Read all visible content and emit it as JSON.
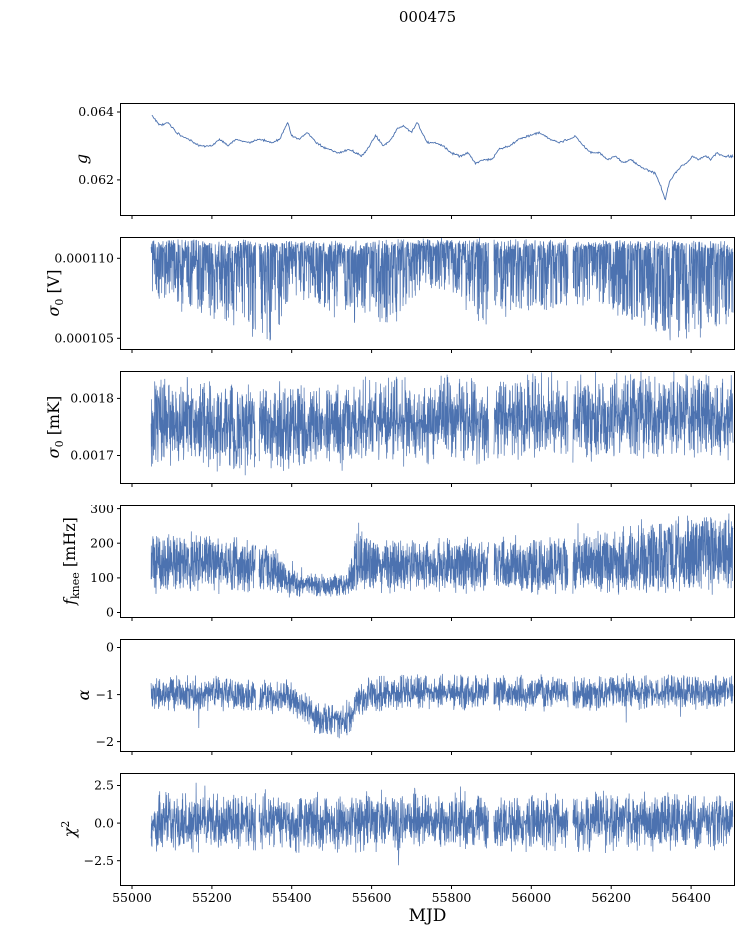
{
  "title": "000475",
  "xlabel": "MJD",
  "line_color": "#4c72b0",
  "axis": {
    "xlim": [
      54970,
      56510
    ],
    "xticks": [
      {
        "v": 55000,
        "t": "55000"
      },
      {
        "v": 55200,
        "t": "55200"
      },
      {
        "v": 55400,
        "t": "55400"
      },
      {
        "v": 55600,
        "t": "55600"
      },
      {
        "v": 55800,
        "t": "55800"
      },
      {
        "v": 56000,
        "t": "56000"
      },
      {
        "v": 56200,
        "t": "56200"
      },
      {
        "v": 56400,
        "t": "56400"
      }
    ],
    "gaps": [
      [
        55310,
        55318
      ],
      [
        55893,
        55906
      ],
      [
        56092,
        56104
      ]
    ]
  },
  "chart_data": [
    {
      "id": "g",
      "type": "line",
      "ylabel": {
        "main": "g",
        "sub": "",
        "sup": "",
        "unit": ""
      },
      "ylim": [
        0.06095,
        0.06425
      ],
      "yticks": [
        {
          "v": 0.062,
          "t": "0.062"
        },
        {
          "v": 0.064,
          "t": "0.064"
        }
      ],
      "mode": "trend",
      "seed": 42,
      "n": 750,
      "sw": 0.9,
      "xdata": [
        55050,
        56505
      ],
      "amp": 4e-05,
      "trend": [
        [
          55050,
          0.0639
        ],
        [
          55070,
          0.0636
        ],
        [
          55090,
          0.0637
        ],
        [
          55110,
          0.0634
        ],
        [
          55140,
          0.0632
        ],
        [
          55170,
          0.063
        ],
        [
          55200,
          0.063
        ],
        [
          55220,
          0.0632
        ],
        [
          55240,
          0.063
        ],
        [
          55260,
          0.0632
        ],
        [
          55290,
          0.0631
        ],
        [
          55320,
          0.0632
        ],
        [
          55350,
          0.0631
        ],
        [
          55370,
          0.0632
        ],
        [
          55390,
          0.0637
        ],
        [
          55400,
          0.0633
        ],
        [
          55420,
          0.0632
        ],
        [
          55440,
          0.0634
        ],
        [
          55460,
          0.0631
        ],
        [
          55490,
          0.0629
        ],
        [
          55520,
          0.0628
        ],
        [
          55540,
          0.0629
        ],
        [
          55560,
          0.0628
        ],
        [
          55575,
          0.0627
        ],
        [
          55590,
          0.0629
        ],
        [
          55610,
          0.0633
        ],
        [
          55630,
          0.063
        ],
        [
          55650,
          0.0632
        ],
        [
          55665,
          0.0635
        ],
        [
          55680,
          0.0636
        ],
        [
          55700,
          0.0634
        ],
        [
          55715,
          0.0637
        ],
        [
          55725,
          0.0634
        ],
        [
          55740,
          0.0631
        ],
        [
          55760,
          0.0631
        ],
        [
          55780,
          0.063
        ],
        [
          55800,
          0.0628
        ],
        [
          55820,
          0.0627
        ],
        [
          55840,
          0.0628
        ],
        [
          55860,
          0.0625
        ],
        [
          55880,
          0.0626
        ],
        [
          55900,
          0.0626
        ],
        [
          55920,
          0.0629
        ],
        [
          55945,
          0.063
        ],
        [
          55970,
          0.0632
        ],
        [
          55995,
          0.0633
        ],
        [
          56020,
          0.0634
        ],
        [
          56045,
          0.0632
        ],
        [
          56070,
          0.0631
        ],
        [
          56095,
          0.0632
        ],
        [
          56110,
          0.0633
        ],
        [
          56130,
          0.063
        ],
        [
          56150,
          0.0628
        ],
        [
          56170,
          0.0628
        ],
        [
          56190,
          0.0626
        ],
        [
          56210,
          0.0627
        ],
        [
          56230,
          0.0625
        ],
        [
          56250,
          0.0626
        ],
        [
          56270,
          0.0624
        ],
        [
          56290,
          0.0623
        ],
        [
          56310,
          0.0622
        ],
        [
          56325,
          0.0618
        ],
        [
          56335,
          0.0614
        ],
        [
          56345,
          0.0619
        ],
        [
          56360,
          0.0622
        ],
        [
          56375,
          0.0624
        ],
        [
          56390,
          0.0625
        ],
        [
          56405,
          0.0627
        ],
        [
          56420,
          0.0626
        ],
        [
          56435,
          0.0627
        ],
        [
          56450,
          0.0626
        ],
        [
          56465,
          0.0628
        ],
        [
          56480,
          0.0627
        ],
        [
          56505,
          0.0627
        ]
      ]
    },
    {
      "id": "sigma0-v",
      "type": "line",
      "ylabel": {
        "main": "σ",
        "sub": "0",
        "sup": "",
        "unit": " [V]"
      },
      "ylim": [
        0.0001043,
        0.0001113
      ],
      "yticks": [
        {
          "v": 0.000105,
          "t": "0.000105"
        },
        {
          "v": 0.00011,
          "t": "0.000110"
        }
      ],
      "mode": "updown",
      "seed": 7,
      "n": 2600,
      "sw": 0.7,
      "xdata": [
        55048,
        56505
      ],
      "center": [
        [
          55048,
          0.0001107
        ],
        [
          55300,
          0.0001107
        ],
        [
          55500,
          0.0001106
        ],
        [
          55800,
          0.0001108
        ],
        [
          56100,
          0.0001107
        ],
        [
          56505,
          0.0001106
        ]
      ],
      "up": 5e-07,
      "pu": 1,
      "down": [
        [
          55048,
          3e-06
        ],
        [
          55120,
          4.2e-06
        ],
        [
          55200,
          4.6e-06
        ],
        [
          55290,
          5.5e-06
        ],
        [
          55340,
          6.3e-06
        ],
        [
          55400,
          3.6e-06
        ],
        [
          55480,
          4.2e-06
        ],
        [
          55560,
          5e-06
        ],
        [
          55650,
          5e-06
        ],
        [
          55720,
          3.2e-06
        ],
        [
          55800,
          3e-06
        ],
        [
          55880,
          5.5e-06
        ],
        [
          55950,
          4.2e-06
        ],
        [
          56050,
          4.2e-06
        ],
        [
          56150,
          3.8e-06
        ],
        [
          56250,
          5e-06
        ],
        [
          56350,
          6e-06
        ],
        [
          56450,
          5.5e-06
        ],
        [
          56505,
          4.5e-06
        ]
      ],
      "pd": 2.2,
      "rare_down": {
        "p": 0.0025,
        "a": 1.8e-06
      }
    },
    {
      "id": "sigma0-mk",
      "type": "line",
      "ylabel": {
        "main": "σ",
        "sub": "0",
        "sup": "",
        "unit": " [mK]"
      },
      "ylim": [
        0.001651,
        0.001847
      ],
      "yticks": [
        {
          "v": 0.0017,
          "t": "0.0017"
        },
        {
          "v": 0.0018,
          "t": "0.0018"
        }
      ],
      "mode": "sym",
      "seed": 13,
      "n": 2600,
      "sw": 0.7,
      "xdata": [
        55048,
        56505
      ],
      "center": [
        [
          55048,
          0.001762
        ],
        [
          55150,
          0.001758
        ],
        [
          55250,
          0.00175
        ],
        [
          55330,
          0.001748
        ],
        [
          55420,
          0.001756
        ],
        [
          55500,
          0.001752
        ],
        [
          55600,
          0.001762
        ],
        [
          55700,
          0.001758
        ],
        [
          55800,
          0.001762
        ],
        [
          55900,
          0.001756
        ],
        [
          56000,
          0.001764
        ],
        [
          56100,
          0.001768
        ],
        [
          56200,
          0.001764
        ],
        [
          56300,
          0.001768
        ],
        [
          56400,
          0.001766
        ],
        [
          56505,
          0.001765
        ]
      ],
      "amp": 8.5e-05,
      "rare_down": {
        "p": 0.004,
        "a": 6e-05
      },
      "rare_up": {
        "p": 0.003,
        "a": 3e-05
      }
    },
    {
      "id": "f-knee",
      "type": "line",
      "ylabel": {
        "main": "f",
        "sub": "knee",
        "sup": "",
        "unit": " [mHz]"
      },
      "ylim": [
        -14.5,
        309
      ],
      "yticks": [
        {
          "v": 0,
          "t": "0"
        },
        {
          "v": 100,
          "t": "100"
        },
        {
          "v": 200,
          "t": "200"
        },
        {
          "v": 300,
          "t": "300"
        }
      ],
      "mode": "updown",
      "seed": 99,
      "n": 3000,
      "sw": 0.7,
      "xdata": [
        55048,
        56505
      ],
      "center": [
        [
          55048,
          100
        ],
        [
          55300,
          95
        ],
        [
          55360,
          90
        ],
        [
          55395,
          80
        ],
        [
          55420,
          72
        ],
        [
          55540,
          72
        ],
        [
          55560,
          95
        ],
        [
          55650,
          95
        ],
        [
          56505,
          95
        ]
      ],
      "up": [
        [
          55048,
          135
        ],
        [
          55150,
          140
        ],
        [
          55300,
          120
        ],
        [
          55360,
          110
        ],
        [
          55395,
          60
        ],
        [
          55420,
          45
        ],
        [
          55540,
          45
        ],
        [
          55565,
          170
        ],
        [
          55600,
          130
        ],
        [
          55700,
          120
        ],
        [
          55800,
          125
        ],
        [
          55900,
          135
        ],
        [
          56000,
          125
        ],
        [
          56100,
          135
        ],
        [
          56200,
          150
        ],
        [
          56300,
          175
        ],
        [
          56400,
          195
        ],
        [
          56505,
          200
        ]
      ],
      "pu": 1,
      "down": [
        [
          55048,
          48
        ],
        [
          55395,
          40
        ],
        [
          55420,
          32
        ],
        [
          55540,
          32
        ],
        [
          55560,
          45
        ],
        [
          56505,
          45
        ]
      ],
      "pd": 1,
      "rare_up": {
        "p": 0.01,
        "a": 70
      }
    },
    {
      "id": "alpha",
      "type": "line",
      "ylabel": {
        "main": "α",
        "sub": "",
        "sup": "",
        "unit": ""
      },
      "ylim": [
        -2.21,
        0.17
      ],
      "yticks": [
        {
          "v": -2,
          "t": "−2"
        },
        {
          "v": -1,
          "t": "−1"
        },
        {
          "v": 0,
          "t": "0"
        }
      ],
      "mode": "sym",
      "seed": 5,
      "n": 2600,
      "sw": 0.7,
      "xdata": [
        55048,
        56505
      ],
      "center": [
        [
          55048,
          -0.95
        ],
        [
          55250,
          -0.98
        ],
        [
          55320,
          -1.05
        ],
        [
          55390,
          -1.05
        ],
        [
          55430,
          -1.25
        ],
        [
          55460,
          -1.5
        ],
        [
          55480,
          -1.55
        ],
        [
          55545,
          -1.5
        ],
        [
          55570,
          -1.1
        ],
        [
          55600,
          -0.97
        ],
        [
          55800,
          -0.95
        ],
        [
          56000,
          -0.97
        ],
        [
          56200,
          -0.95
        ],
        [
          56505,
          -0.92
        ]
      ],
      "amp": 0.42,
      "rare_down": {
        "p": 0.012,
        "a": 0.5
      },
      "rare_up": {
        "p": 0.004,
        "a": 0.15
      }
    },
    {
      "id": "chi2",
      "type": "line",
      "ylabel": {
        "main": "χ",
        "sub": "",
        "sup": "2",
        "unit": ""
      },
      "ylim": [
        -4.15,
        3.3
      ],
      "yticks": [
        {
          "v": -2.5,
          "t": "−2.5"
        },
        {
          "v": 0,
          "t": "0.0"
        },
        {
          "v": 2.5,
          "t": "2.5"
        }
      ],
      "mode": "sym",
      "seed": 77,
      "n": 2600,
      "sw": 0.7,
      "xdata": [
        55048,
        56505
      ],
      "center": [
        [
          55048,
          0.1
        ],
        [
          56505,
          0.1
        ]
      ],
      "amp": 2.1,
      "rare_down": {
        "p": 0.02,
        "a": 1.0
      },
      "rare_up": {
        "p": 0.02,
        "a": 1.0
      }
    }
  ]
}
